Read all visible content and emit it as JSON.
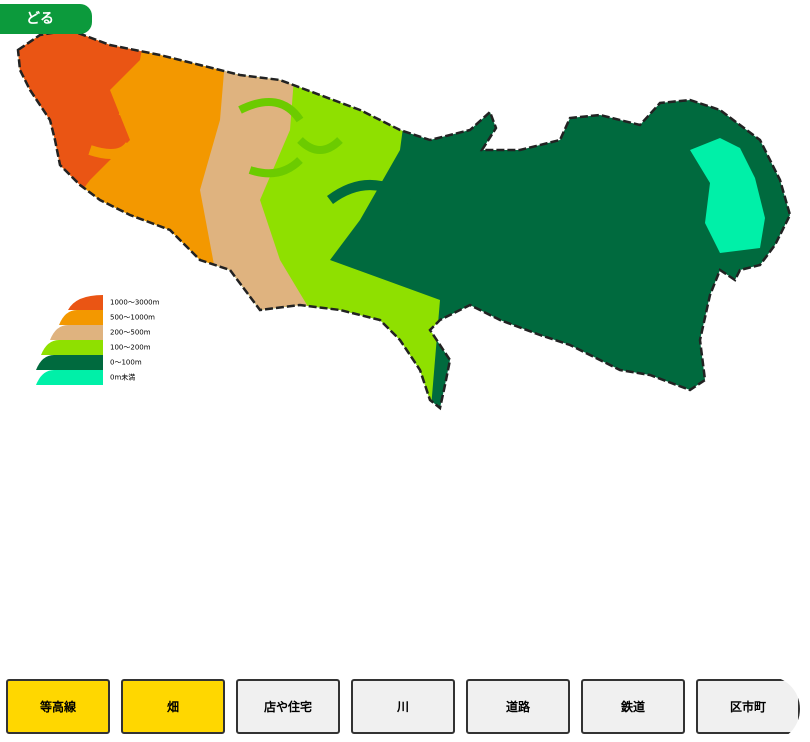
{
  "back_button": {
    "label": "どる"
  },
  "legend": [
    {
      "label": "1000〜3000m",
      "color": "#ea5514"
    },
    {
      "label": "500〜1000m",
      "color": "#f39800"
    },
    {
      "label": "200〜500m",
      "color": "#dfb37f"
    },
    {
      "label": "100〜200m",
      "color": "#8fe000"
    },
    {
      "label": "0〜100m",
      "color": "#006a3e"
    },
    {
      "label": "0m未満",
      "color": "#00f0a8"
    }
  ],
  "buttons": [
    {
      "label": "等高線",
      "active": true
    },
    {
      "label": "畑",
      "active": true
    },
    {
      "label": "店や住宅",
      "active": false
    },
    {
      "label": "川",
      "active": false
    },
    {
      "label": "道路",
      "active": false
    },
    {
      "label": "鉄道",
      "active": false
    },
    {
      "label": "区市町",
      "active": false
    }
  ]
}
